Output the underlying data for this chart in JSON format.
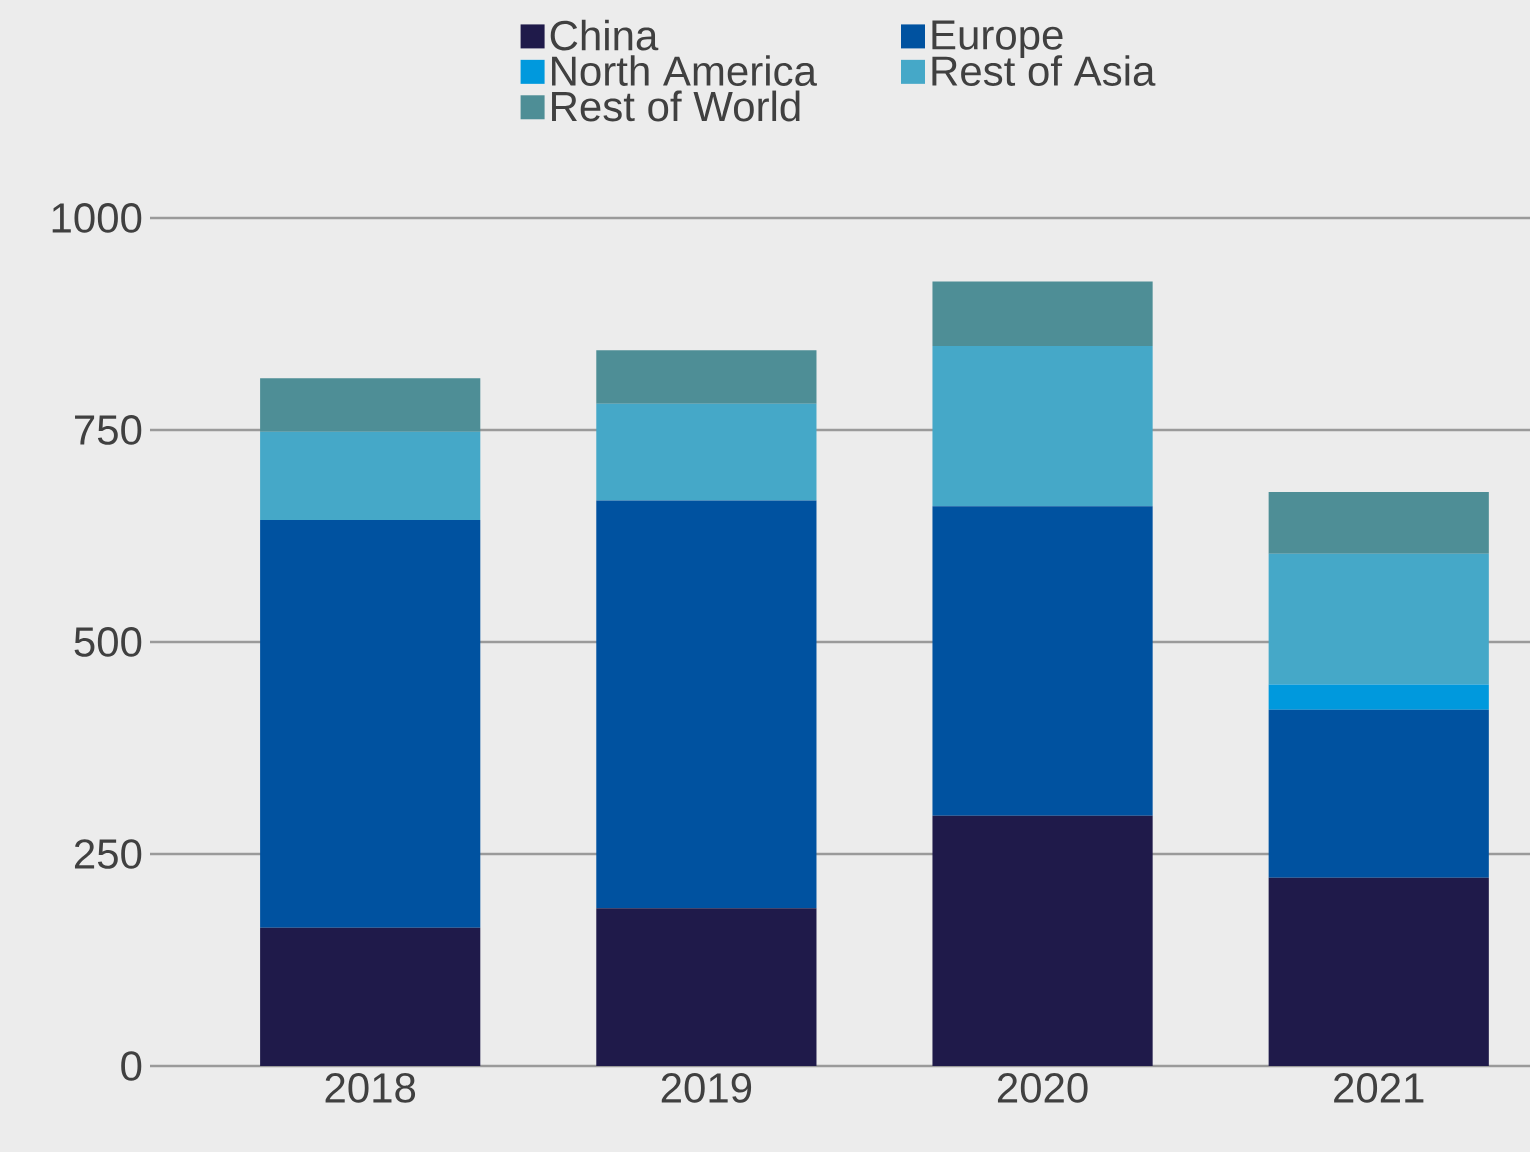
{
  "chart_data": {
    "type": "bar",
    "stacked": true,
    "categories": [
      "2018",
      "2019",
      "2020",
      "2021"
    ],
    "series": [
      {
        "name": "China",
        "color": "#1f1a4a",
        "values": [
          163,
          186,
          295,
          222
        ]
      },
      {
        "name": "Europe",
        "color": "#0052a0",
        "values": [
          481,
          481,
          365,
          198
        ]
      },
      {
        "name": "North America",
        "color": "#0099dd",
        "values": [
          0,
          0,
          0,
          30
        ]
      },
      {
        "name": "Rest of Asia",
        "color": "#45a8c8",
        "values": [
          104,
          114,
          189,
          154
        ]
      },
      {
        "name": "Rest of World",
        "color": "#4e8e96",
        "values": [
          63,
          63,
          76,
          73
        ]
      }
    ],
    "ylim": [
      0,
      1250
    ],
    "yticks": [
      0,
      250,
      500,
      750,
      1000
    ],
    "grid": "y",
    "legend": "top"
  }
}
